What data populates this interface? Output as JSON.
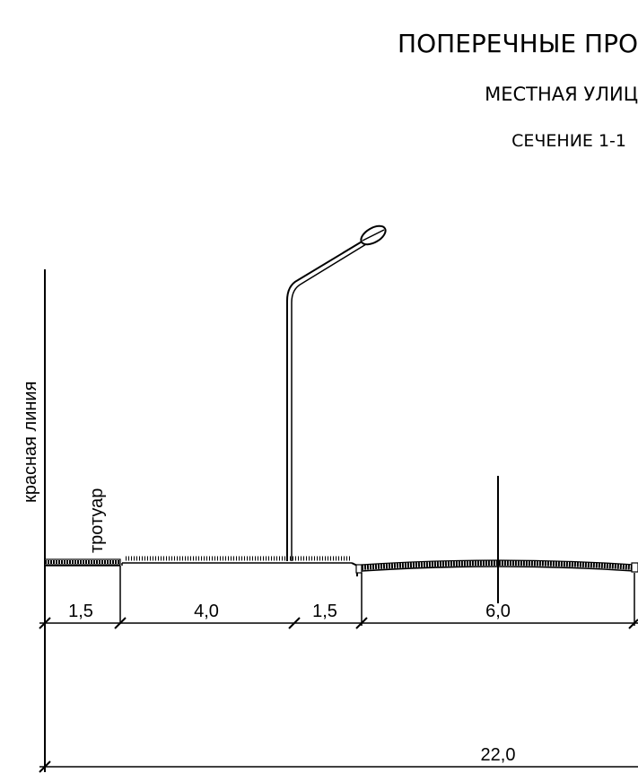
{
  "header": {
    "title": "ПОПЕРЕЧНЫЕ ПРО",
    "subtitle": "МЕСТНАЯ УЛИЦ",
    "section": "СЕЧЕНИЕ 1-1"
  },
  "labels": {
    "red_line": "красная линия",
    "sidewalk": "тротуар"
  },
  "dimensions": {
    "d1": "1,5",
    "d2": "4,0",
    "d3": "1,5",
    "d4": "6,0",
    "total": "22,0"
  }
}
